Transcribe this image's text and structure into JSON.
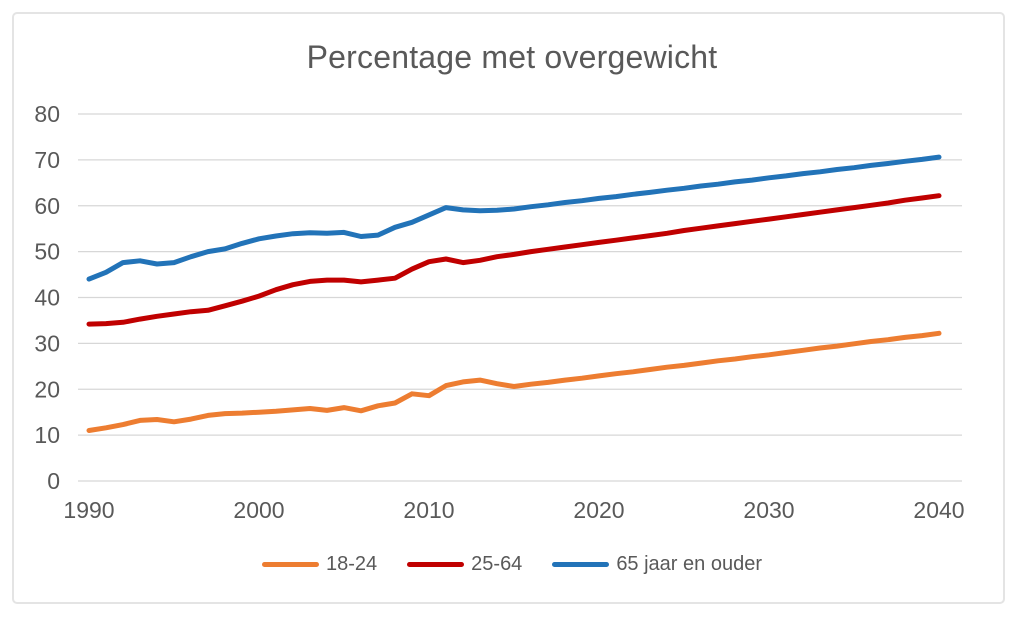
{
  "chart_data": {
    "type": "line",
    "title": "Percentage met overgewicht",
    "xlabel": "",
    "ylabel": "",
    "ylim": [
      0,
      80
    ],
    "xlim": [
      1990,
      2040
    ],
    "y_ticks": [
      0,
      10,
      20,
      30,
      40,
      50,
      60,
      70,
      80
    ],
    "x_ticks": [
      1990,
      2000,
      2010,
      2020,
      2030,
      2040
    ],
    "grid": "horizontal",
    "legend_position": "bottom",
    "colors": {
      "grid": "#d7d7d7",
      "text": "#595959",
      "border": "#e4e4e4"
    },
    "x": [
      1990,
      1991,
      1992,
      1993,
      1994,
      1995,
      1996,
      1997,
      1998,
      1999,
      2000,
      2001,
      2002,
      2003,
      2004,
      2005,
      2006,
      2007,
      2008,
      2009,
      2010,
      2011,
      2012,
      2013,
      2014,
      2015,
      2016,
      2017,
      2018,
      2019,
      2020,
      2021,
      2022,
      2023,
      2024,
      2025,
      2026,
      2027,
      2028,
      2029,
      2030,
      2031,
      2032,
      2033,
      2034,
      2035,
      2036,
      2037,
      2038,
      2039,
      2040
    ],
    "series": [
      {
        "name": "18-24",
        "color": "#ED7D31",
        "values": [
          11.0,
          11.6,
          12.3,
          13.2,
          13.4,
          12.9,
          13.5,
          14.3,
          14.7,
          14.8,
          15.0,
          15.2,
          15.5,
          15.8,
          15.4,
          16.0,
          15.3,
          16.4,
          17.0,
          19.0,
          18.6,
          20.8,
          21.6,
          22.0,
          21.2,
          20.6,
          21.1,
          21.5,
          22.0,
          22.4,
          22.9,
          23.4,
          23.8,
          24.3,
          24.8,
          25.2,
          25.7,
          26.2,
          26.6,
          27.1,
          27.5,
          28.0,
          28.5,
          29.0,
          29.4,
          29.9,
          30.4,
          30.8,
          31.3,
          31.7,
          32.2
        ]
      },
      {
        "name": "25-64",
        "color": "#C00000",
        "values": [
          34.2,
          34.3,
          34.6,
          35.3,
          35.9,
          36.4,
          36.9,
          37.2,
          38.2,
          39.2,
          40.3,
          41.7,
          42.8,
          43.5,
          43.8,
          43.8,
          43.4,
          43.8,
          44.2,
          46.2,
          47.8,
          48.4,
          47.6,
          48.1,
          48.9,
          49.4,
          50.0,
          50.5,
          51.0,
          51.5,
          52.0,
          52.5,
          53.0,
          53.5,
          54.0,
          54.6,
          55.1,
          55.6,
          56.1,
          56.6,
          57.1,
          57.6,
          58.1,
          58.6,
          59.1,
          59.6,
          60.1,
          60.6,
          61.2,
          61.7,
          62.2
        ]
      },
      {
        "name": "65 jaar en ouder",
        "color": "#2273B8",
        "values": [
          44.0,
          45.5,
          47.6,
          48.0,
          47.3,
          47.6,
          48.9,
          50.0,
          50.6,
          51.8,
          52.8,
          53.4,
          53.9,
          54.1,
          54.0,
          54.2,
          53.3,
          53.6,
          55.3,
          56.4,
          58.0,
          59.6,
          59.1,
          58.9,
          59.0,
          59.3,
          59.8,
          60.2,
          60.7,
          61.1,
          61.6,
          62.0,
          62.5,
          62.9,
          63.4,
          63.8,
          64.3,
          64.7,
          65.2,
          65.6,
          66.1,
          66.5,
          67.0,
          67.4,
          67.9,
          68.3,
          68.8,
          69.2,
          69.7,
          70.1,
          70.6
        ]
      }
    ]
  }
}
